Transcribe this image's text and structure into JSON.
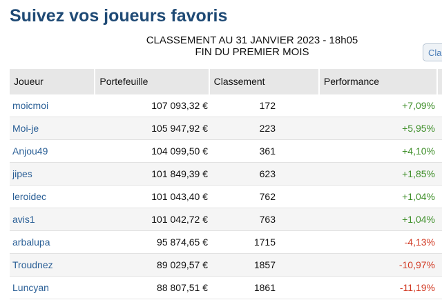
{
  "header": {
    "title": "Suivez vos joueurs favoris",
    "subtitle_line1": "CLASSEMENT AU 31 JANVIER 2023 - 18h05",
    "subtitle_line2": "FIN DU PREMIER MOIS",
    "side_button_label": "Cla"
  },
  "table": {
    "columns": [
      "Joueur",
      "Portefeuille",
      "Classement",
      "Performance"
    ],
    "rows": [
      {
        "joueur": "moicmoi",
        "portefeuille": "107 093,32 €",
        "classement": "172",
        "performance": "+7,09%",
        "trend": "up"
      },
      {
        "joueur": "Moi-je",
        "portefeuille": "105 947,92 €",
        "classement": "223",
        "performance": "+5,95%",
        "trend": "up"
      },
      {
        "joueur": "Anjou49",
        "portefeuille": "104 099,50 €",
        "classement": "361",
        "performance": "+4,10%",
        "trend": "up"
      },
      {
        "joueur": "jipes",
        "portefeuille": "101 849,39 €",
        "classement": "623",
        "performance": "+1,85%",
        "trend": "up"
      },
      {
        "joueur": "leroidec",
        "portefeuille": "101 043,40 €",
        "classement": "762",
        "performance": "+1,04%",
        "trend": "up"
      },
      {
        "joueur": "avis1",
        "portefeuille": "101 042,72 €",
        "classement": "763",
        "performance": "+1,04%",
        "trend": "up"
      },
      {
        "joueur": "arbalupa",
        "portefeuille": "95 874,65 €",
        "classement": "1715",
        "performance": "-4,13%",
        "trend": "down"
      },
      {
        "joueur": "Troudnez",
        "portefeuille": "89 029,57 €",
        "classement": "1857",
        "performance": "-10,97%",
        "trend": "down"
      },
      {
        "joueur": "Luncyan",
        "portefeuille": "88 807,51 €",
        "classement": "1861",
        "performance": "-11,19%",
        "trend": "down"
      }
    ]
  },
  "colors": {
    "title": "#1f4a75",
    "player_link": "#2a5f96",
    "positive": "#3f8f2a",
    "negative": "#d23b25",
    "header_bg": "#e7e7e7"
  }
}
